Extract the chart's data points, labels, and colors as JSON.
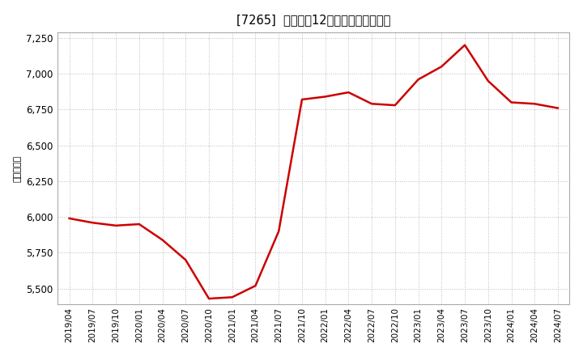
{
  "title": "[7265]  売上高の12か月移動合計の推移",
  "ylabel": "（百万円）",
  "line_color": "#cc0000",
  "background_color": "#ffffff",
  "grid_color": "#bbbbbb",
  "plot_bg_color": "#ffffff",
  "dates": [
    "2019/04",
    "2019/07",
    "2019/10",
    "2020/01",
    "2020/04",
    "2020/07",
    "2020/10",
    "2021/01",
    "2021/04",
    "2021/07",
    "2021/10",
    "2022/01",
    "2022/04",
    "2022/07",
    "2022/10",
    "2023/01",
    "2023/04",
    "2023/07",
    "2023/10",
    "2024/01",
    "2024/04",
    "2024/07"
  ],
  "values": [
    5990,
    5960,
    5940,
    5950,
    5840,
    5700,
    5430,
    5440,
    5520,
    5900,
    6820,
    6840,
    6870,
    6790,
    6780,
    6960,
    7050,
    7200,
    6950,
    6800,
    6790,
    6760
  ],
  "ylim": [
    5390,
    7290
  ],
  "yticks": [
    5500,
    5750,
    6000,
    6250,
    6500,
    6750,
    7000,
    7250
  ],
  "xtick_labels": [
    "2019/04",
    "2019/07",
    "2019/10",
    "2020/01",
    "2020/04",
    "2020/07",
    "2020/10",
    "2021/01",
    "2021/04",
    "2021/07",
    "2021/10",
    "2022/01",
    "2022/04",
    "2022/07",
    "2022/10",
    "2023/01",
    "2023/04",
    "2023/07",
    "2023/10",
    "2024/01",
    "2024/04",
    "2024/07"
  ]
}
